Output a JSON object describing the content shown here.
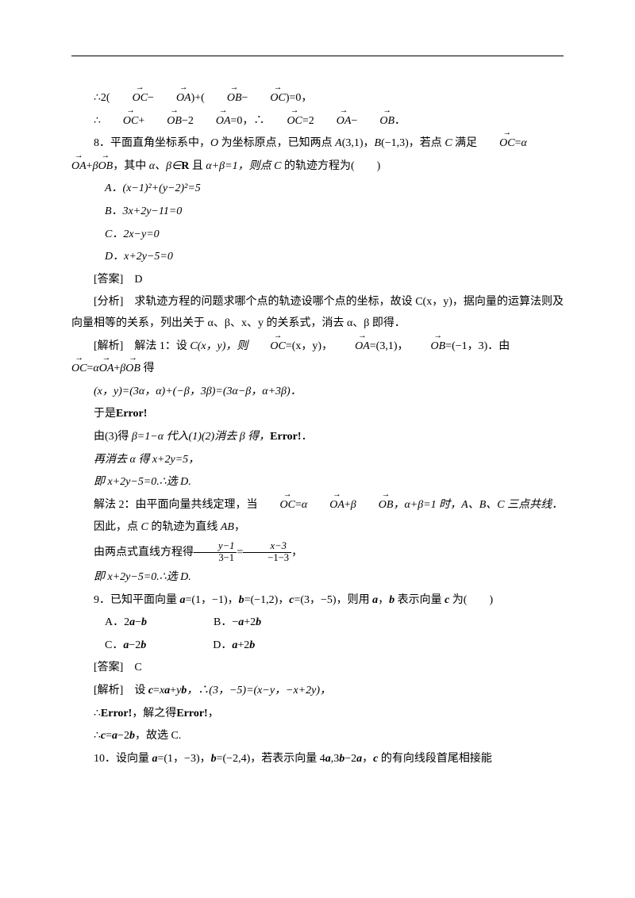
{
  "eq1": "∴2(",
  "eq1b": "−",
  "eq1c": ")+(",
  "eq1d": "−",
  "eq1e": ")=0，",
  "eq2a": "∴",
  "eq2b": "+",
  "eq2c": "−2",
  "eq2d": "=0，∴",
  "eq2e": "=2",
  "eq2f": "−",
  "eq2g": "．",
  "q8_a": "8．平面直角坐标系中，",
  "q8_b": " 为坐标原点，已知两点 ",
  "q8_c": "(3,1)，",
  "q8_d": "(−1,3)，若点 ",
  "q8_e": " 满足",
  "q8_f": "=",
  "q8_g": "α",
  "q8_h": "+",
  "q8_i": "β",
  "q8_j": "，其中 ",
  "q8_k": "α、β∈",
  "q8_l": " 且 ",
  "q8_m": "α+β=1，则点 ",
  "q8_n": " 的轨迹方程为(　　)",
  "optA": "A．(x−1)²+(y−2)²=5",
  "optB": "B．3x+2y−11=0",
  "optC": "C．2x−y=0",
  "optD": "D．x+2y−5=0",
  "ans8": "[答案]　D",
  "ana8": "[分析]　求轨迹方程的问题求哪个点的轨迹设哪个点的坐标，故设 C(x，y)，据向量的运算法则及向量相等的关系，列出关于 α、β、x、y 的关系式，消去 α、β 即得．",
  "s1a": "[解析]　解法 1：设 ",
  "s1b": "C(x，y)，则",
  "s1c": "=(x，y)，",
  "s1d": "=(3,1)，",
  "s1e": "=(−1，3)．由",
  "s2a": "=",
  "s2b": "α",
  "s2c": "+",
  "s2d": "β",
  "s2e": " 得",
  "s3": "(x，y)=(3α，α)+(−β，3β)=(3α−β，α+3β)．",
  "s4a": "于是",
  "s4b": "Error!",
  "s5a": "由(3)得 ",
  "s5b": "β=1−α 代入(1)(2)消去 β 得，",
  "s5c": "Error!",
  "s5d": "．",
  "s6": "再消去 α 得 x+2y=5，",
  "s7": "即 x+2y−5=0.∴选 D.",
  "m2a": "解法 2：由平面向量共线定理，当",
  "m2b": "=",
  "m2c": "α",
  "m2d": "+",
  "m2e": "β",
  "m2f": "，α+β=1 时，A、B、C 三点共线．",
  "m3a": "因此，点 ",
  "m3b": "C",
  "m3c": " 的轨迹为直线 ",
  "m3d": "AB",
  "m3e": "，",
  "m4a": "由两点式直线方程得",
  "m4eq": "=",
  "m4b": "，",
  "m5": "即 x+2y−5=0.∴选 D.",
  "q9a": "9．已知平面向量 ",
  "q9b": "=(1，−1)，",
  "q9c": "=(−1,2)，",
  "q9d": "=(3，−5)，则用 ",
  "q9e": "，",
  "q9f": " 表示向量 ",
  "q9g": " 为(　　)",
  "q9A1": "A．2",
  "q9A2": "−",
  "q9B1": "B．−",
  "q9B2": "+2",
  "q9C1": "C．",
  "q9C2": "−2",
  "q9D1": "D．",
  "q9D2": "+2",
  "ans9": "[答案]　C",
  "sol9a": "[解析]　设 ",
  "sol9b": "=",
  "sol9c": "x",
  "sol9d": "+",
  "sol9e": "y",
  "sol9f": "，∴(3，−5)=(x−y，−x+2y)，",
  "sol9g": "∴",
  "sol9h": "Error!",
  "sol9i": "，解之得",
  "sol9j": "Error!",
  "sol9k": "，",
  "sol9l": "∴",
  "sol9m": "=",
  "sol9n": "−2",
  "sol9o": "，故选 C.",
  "q10a": "10．设向量 ",
  "q10b": "=(1，−3)，",
  "q10c": "=(−2,4)，若表示向量 4",
  "q10d": ",3",
  "q10e": "−2",
  "q10f": "，",
  "q10g": " 的有向线段首尾相接能",
  "frac1n": "y−1",
  "frac1d": "3−1",
  "frac2n": "x−3",
  "frac2d": "−1−3",
  "O": "O",
  "A": "A",
  "B": "B",
  "C": "C",
  "OA": "OA",
  "OB": "OB",
  "OC": "OC",
  "R": "R",
  "a": "a",
  "b": "b",
  "c": "c"
}
